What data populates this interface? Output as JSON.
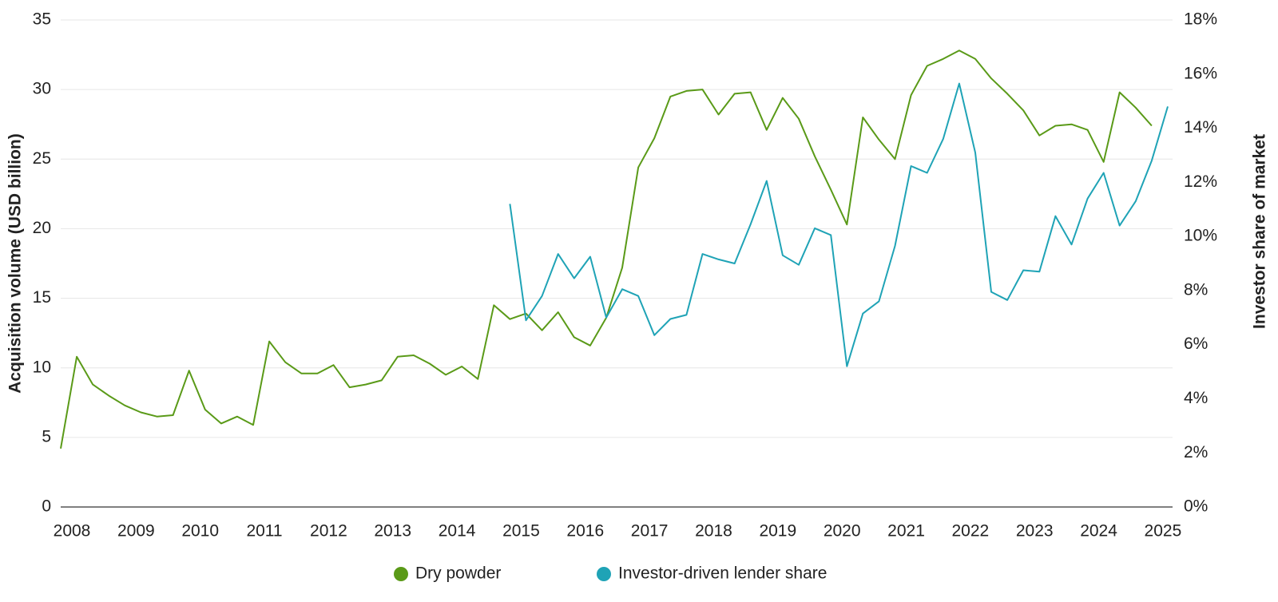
{
  "chart_data": {
    "type": "line",
    "y_label": "Acquisition volume (USD billion)",
    "y2_label": "Investor share of market",
    "x": [
      2008,
      2008.25,
      2008.5,
      2008.75,
      2009,
      2009.25,
      2009.5,
      2009.75,
      2010,
      2010.25,
      2010.5,
      2010.75,
      2011,
      2011.25,
      2011.5,
      2011.75,
      2012,
      2012.25,
      2012.5,
      2012.75,
      2013,
      2013.25,
      2013.5,
      2013.75,
      2014,
      2014.25,
      2014.5,
      2014.75,
      2015,
      2015.25,
      2015.5,
      2015.75,
      2016,
      2016.25,
      2016.5,
      2016.75,
      2017,
      2017.25,
      2017.5,
      2017.75,
      2018,
      2018.25,
      2018.5,
      2018.75,
      2019,
      2019.25,
      2019.5,
      2019.75,
      2020,
      2020.25,
      2020.5,
      2020.75,
      2021,
      2021.25,
      2021.5,
      2021.75,
      2022,
      2022.25,
      2022.5,
      2022.75,
      2023,
      2023.25,
      2023.5,
      2023.75,
      2024,
      2024.25,
      2024.5,
      2024.75,
      2025,
      2025.25
    ],
    "series": [
      {
        "name": "Dry powder",
        "color": "#5a9a18",
        "values": [
          4.2,
          10.8,
          8.8,
          8.0,
          7.3,
          6.8,
          6.5,
          6.6,
          9.8,
          7.0,
          6.0,
          6.5,
          5.9,
          11.9,
          10.4,
          9.6,
          9.6,
          10.2,
          8.6,
          8.8,
          9.1,
          10.8,
          10.9,
          10.3,
          9.5,
          10.1,
          9.2,
          14.5,
          13.5,
          13.9,
          12.7,
          14.0,
          12.2,
          11.6,
          13.6,
          17.2,
          24.4,
          26.5,
          29.5,
          29.9,
          30.0,
          28.2,
          29.7,
          29.8,
          27.1,
          29.4,
          27.9,
          25.2,
          22.8,
          20.3,
          28.0,
          26.4,
          25.0,
          29.6,
          31.7,
          32.2,
          32.8,
          32.2,
          30.8,
          29.7,
          28.5,
          26.7,
          27.4,
          27.5,
          27.1,
          24.8,
          29.8,
          28.7,
          27.4,
          null
        ]
      },
      {
        "name": "Investor-driven lender share",
        "color": "#1fa3b6",
        "axis": "y2",
        "values": [
          null,
          null,
          null,
          null,
          null,
          null,
          null,
          null,
          null,
          null,
          null,
          null,
          null,
          null,
          null,
          null,
          null,
          null,
          null,
          null,
          null,
          null,
          null,
          null,
          null,
          null,
          null,
          null,
          11.2,
          6.9,
          7.8,
          9.35,
          8.45,
          9.25,
          7.0,
          8.05,
          7.8,
          6.35,
          6.95,
          7.1,
          9.35,
          9.15,
          9.0,
          10.45,
          12.05,
          9.3,
          8.95,
          10.3,
          10.05,
          5.2,
          7.15,
          7.6,
          9.65,
          12.6,
          12.35,
          13.6,
          15.65,
          13.1,
          7.95,
          7.65,
          8.75,
          8.7,
          10.75,
          9.7,
          11.4,
          12.35,
          10.4,
          11.3,
          12.8,
          14.8
        ]
      }
    ],
    "xlim": [
      2008,
      2025.25
    ],
    "xticks": [
      2008,
      2009,
      2010,
      2011,
      2012,
      2013,
      2014,
      2015,
      2016,
      2017,
      2018,
      2019,
      2020,
      2021,
      2022,
      2023,
      2024,
      2025
    ],
    "ylim": [
      0,
      35
    ],
    "yticks": [
      0,
      5,
      10,
      15,
      20,
      25,
      30,
      35
    ],
    "y2lim": [
      0,
      18
    ],
    "y2ticks": [
      {
        "value": 0,
        "label": "0%"
      },
      {
        "value": 2,
        "label": "2%"
      },
      {
        "value": 4,
        "label": "4%"
      },
      {
        "value": 6,
        "label": "6%"
      },
      {
        "value": 8,
        "label": "8%"
      },
      {
        "value": 10,
        "label": "10%"
      },
      {
        "value": 12,
        "label": "12%"
      },
      {
        "value": 14,
        "label": "14%"
      },
      {
        "value": 16,
        "label": "16%"
      },
      {
        "value": 18,
        "label": "18%"
      }
    ],
    "grid": true,
    "legend": "bottom"
  }
}
